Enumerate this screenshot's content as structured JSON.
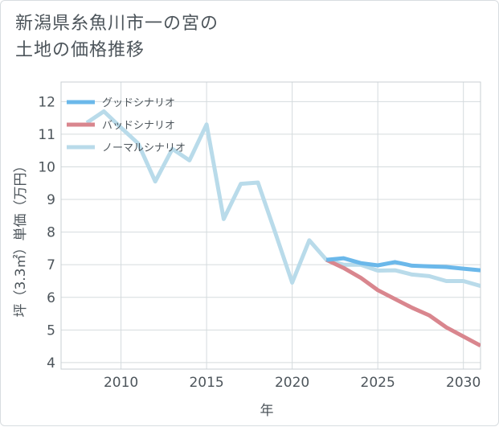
{
  "chart_data": {
    "type": "line",
    "title_lines": [
      "新潟県糸魚川市一の宮の",
      "土地の価格推移"
    ],
    "xlabel": "年",
    "ylabel": "坪（3.3㎡）単価（万円）",
    "xlim": [
      2006.5,
      2031
    ],
    "ylim": [
      3.8,
      12.6
    ],
    "xticks": [
      2010,
      2015,
      2020,
      2025,
      2030
    ],
    "yticks": [
      4,
      5,
      6,
      7,
      8,
      9,
      10,
      11,
      12
    ],
    "grid": true,
    "legend_position": "top-left",
    "series": [
      {
        "name": "グッドシナリオ",
        "color": "#6bb8ea",
        "x": [
          2022,
          2023,
          2024,
          2025,
          2026,
          2027,
          2028,
          2029,
          2030,
          2031
        ],
        "y": [
          7.15,
          7.2,
          7.05,
          6.98,
          7.08,
          6.97,
          6.95,
          6.93,
          6.88,
          6.83
        ]
      },
      {
        "name": "バッドシナリオ",
        "color": "#d9868e",
        "x": [
          2022,
          2023,
          2024,
          2025,
          2026,
          2027,
          2028,
          2029,
          2030,
          2031
        ],
        "y": [
          7.15,
          6.9,
          6.6,
          6.22,
          5.95,
          5.68,
          5.45,
          5.08,
          4.8,
          4.52
        ]
      },
      {
        "name": "ノーマルシナリオ",
        "color": "#b9dbea",
        "x": [
          2008,
          2009,
          2010,
          2011,
          2012,
          2013,
          2014,
          2015,
          2016,
          2017,
          2018,
          2019,
          2020,
          2021,
          2022,
          2023,
          2024,
          2025,
          2026,
          2027,
          2028,
          2029,
          2030,
          2031
        ],
        "y": [
          11.35,
          11.7,
          11.2,
          10.72,
          9.55,
          10.55,
          10.2,
          11.3,
          8.4,
          9.48,
          9.52,
          8.0,
          6.45,
          7.75,
          7.15,
          7.0,
          7.0,
          6.82,
          6.83,
          6.7,
          6.65,
          6.5,
          6.5,
          6.35
        ]
      }
    ]
  }
}
